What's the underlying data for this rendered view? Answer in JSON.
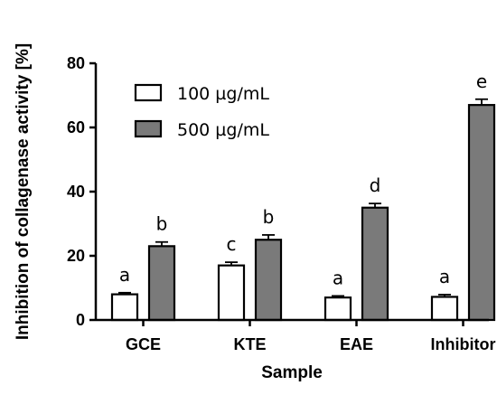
{
  "chart_data": {
    "type": "bar",
    "xlabel": "Sample",
    "ylabel": "Inhibition of collagenase activity [%]",
    "categories": [
      "GCE",
      "KTE",
      "EAE",
      "Inhibitor"
    ],
    "ylim": [
      0,
      80
    ],
    "yticks": [
      0,
      20,
      40,
      60,
      80
    ],
    "grid": false,
    "legend_position": "top-left",
    "series": [
      {
        "name": "100 µg/mL",
        "color": "#ffffff",
        "values": [
          8.0,
          17.0,
          7.0,
          7.2
        ],
        "errors": [
          0.5,
          1.0,
          0.5,
          0.7
        ],
        "labels": [
          "a",
          "c",
          "a",
          "a"
        ]
      },
      {
        "name": "500 µg/mL",
        "color": "#7a7a7a",
        "values": [
          23.0,
          25.0,
          35.0,
          67.0
        ],
        "errors": [
          1.3,
          1.5,
          1.3,
          1.8
        ],
        "labels": [
          "b",
          "b",
          "d",
          "e"
        ]
      }
    ]
  }
}
